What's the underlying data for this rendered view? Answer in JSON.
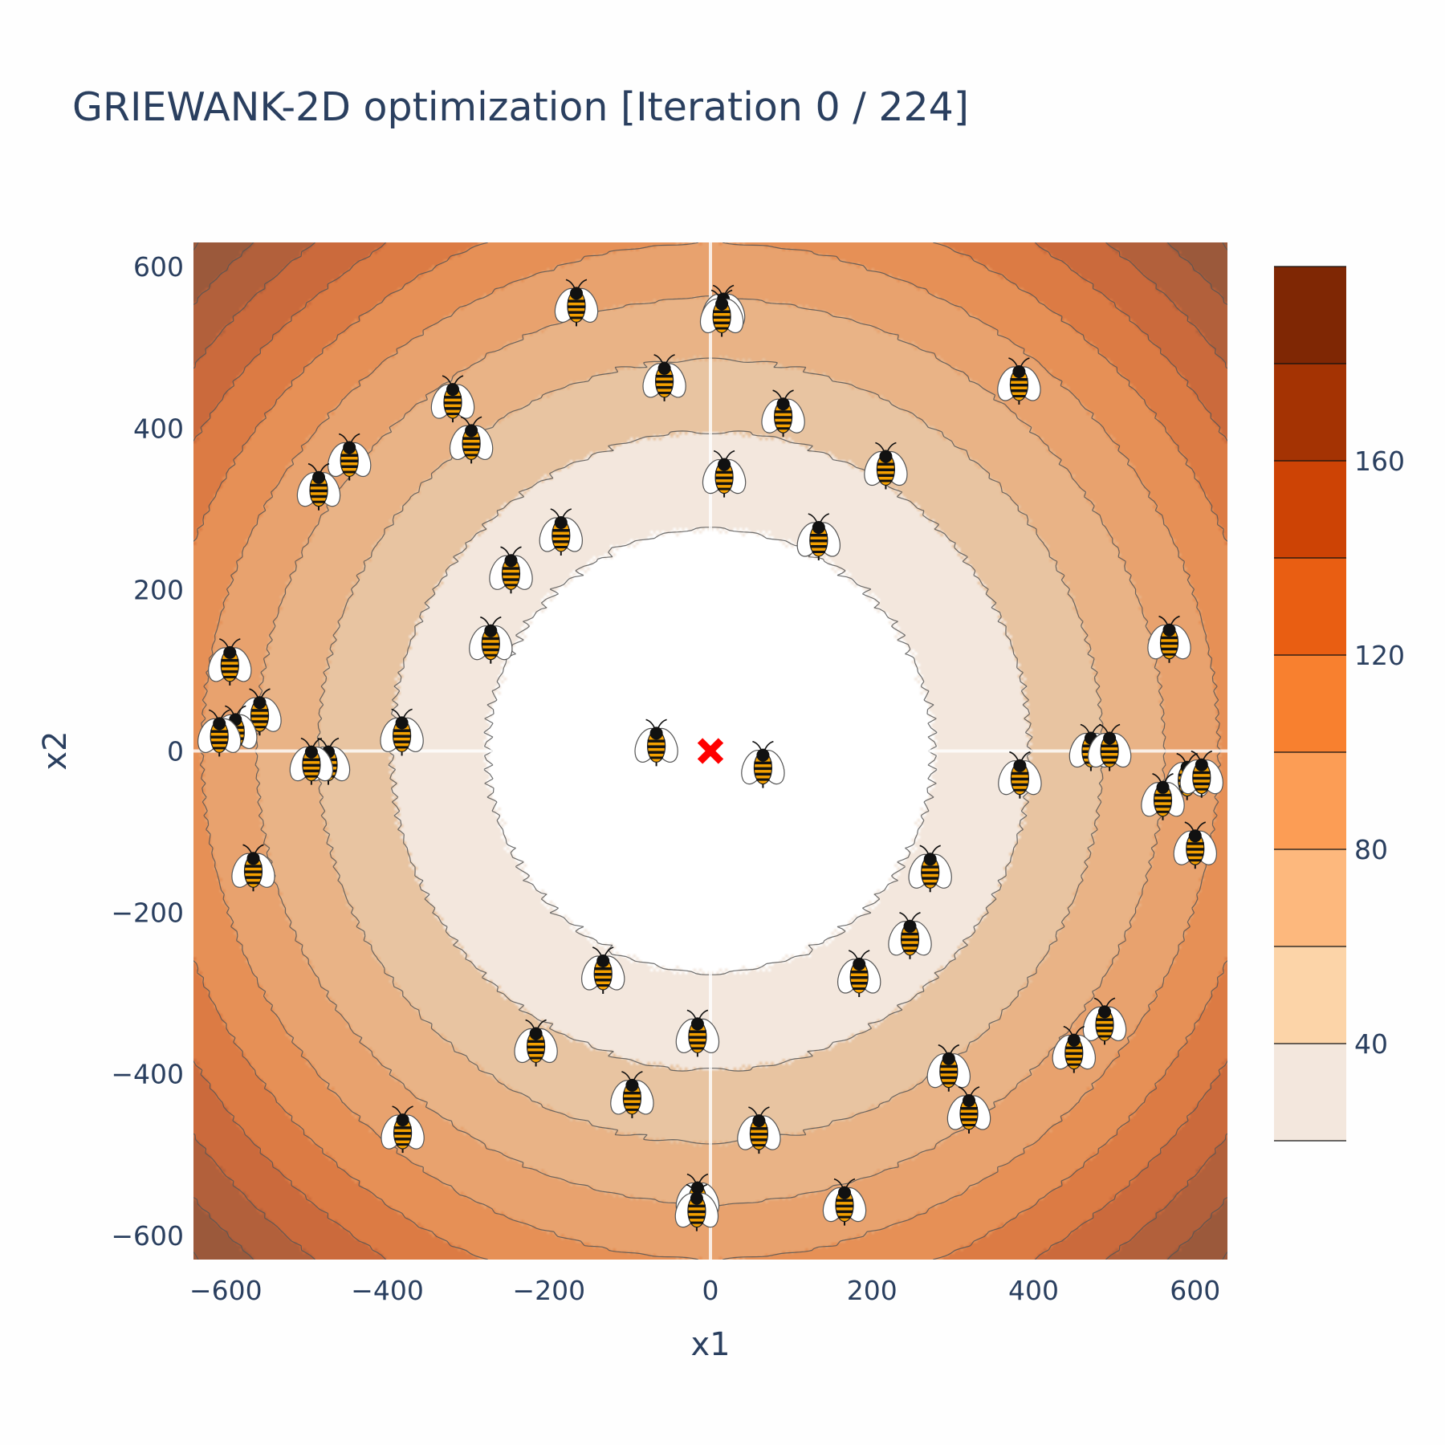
{
  "chart_data": {
    "type": "contour",
    "title": "GRIEWANK-2D optimization [Iteration 0 / 224]",
    "xlabel": "x1",
    "ylabel": "x2",
    "xlim": [
      -640,
      640
    ],
    "ylim": [
      -630,
      630
    ],
    "xticks": [
      -600,
      -400,
      -200,
      0,
      200,
      400,
      600
    ],
    "yticks": [
      -600,
      -400,
      -200,
      0,
      200,
      400,
      600
    ],
    "xtick_labels": [
      "−600",
      "−400",
      "−200",
      "0",
      "200",
      "400",
      "600"
    ],
    "ytick_labels": [
      "−600",
      "−400",
      "−200",
      "0",
      "200",
      "400",
      "600"
    ],
    "contour_levels": [
      20,
      40,
      60,
      80,
      100,
      120,
      140,
      160,
      180,
      200
    ],
    "colorbar": {
      "range": [
        20,
        200
      ],
      "ticks": [
        40,
        80,
        120,
        160
      ],
      "tick_labels": [
        "40",
        "80",
        "120",
        "160"
      ],
      "colors": [
        "#f3e7dd",
        "#fcd4a8",
        "#fdb87d",
        "#fc9d55",
        "#f8802f",
        "#e95e12",
        "#cd4305",
        "#a43303",
        "#7f2704"
      ]
    },
    "grid": true,
    "optimum": {
      "x1": 0,
      "x2": 0,
      "marker": "x",
      "color": "#ff0000"
    },
    "bees": [
      {
        "x1": -166,
        "x2": 555
      },
      {
        "x1": 16,
        "x2": 548
      },
      {
        "x1": 14,
        "x2": 542
      },
      {
        "x1": -57,
        "x2": 462
      },
      {
        "x1": 382,
        "x2": 458
      },
      {
        "x1": -319,
        "x2": 436
      },
      {
        "x1": 90,
        "x2": 418
      },
      {
        "x1": -296,
        "x2": 385
      },
      {
        "x1": -447,
        "x2": 364
      },
      {
        "x1": -485,
        "x2": 327
      },
      {
        "x1": 217,
        "x2": 353
      },
      {
        "x1": 17,
        "x2": 343
      },
      {
        "x1": 134,
        "x2": 265
      },
      {
        "x1": -185,
        "x2": 271
      },
      {
        "x1": -247,
        "x2": 224
      },
      {
        "x1": -272,
        "x2": 137
      },
      {
        "x1": 568,
        "x2": 138
      },
      {
        "x1": -595,
        "x2": 110
      },
      {
        "x1": -558,
        "x2": 48
      },
      {
        "x1": -588,
        "x2": 27
      },
      {
        "x1": -608,
        "x2": 22
      },
      {
        "x1": -382,
        "x2": 23
      },
      {
        "x1": -67,
        "x2": 10
      },
      {
        "x1": 65,
        "x2": -17
      },
      {
        "x1": -473,
        "x2": -13
      },
      {
        "x1": -494,
        "x2": -13
      },
      {
        "x1": 471,
        "x2": 4
      },
      {
        "x1": 494,
        "x2": 4
      },
      {
        "x1": 383,
        "x2": -30
      },
      {
        "x1": 590,
        "x2": -32
      },
      {
        "x1": 608,
        "x2": -29
      },
      {
        "x1": 560,
        "x2": -57
      },
      {
        "x1": 600,
        "x2": -117
      },
      {
        "x1": -566,
        "x2": -145
      },
      {
        "x1": 272,
        "x2": -146
      },
      {
        "x1": 247,
        "x2": -229
      },
      {
        "x1": -133,
        "x2": -272
      },
      {
        "x1": 184,
        "x2": -276
      },
      {
        "x1": 488,
        "x2": -335
      },
      {
        "x1": -216,
        "x2": -362
      },
      {
        "x1": -16,
        "x2": -350
      },
      {
        "x1": 450,
        "x2": -370
      },
      {
        "x1": 295,
        "x2": -393
      },
      {
        "x1": -97,
        "x2": -426
      },
      {
        "x1": 320,
        "x2": -445
      },
      {
        "x1": -381,
        "x2": -469
      },
      {
        "x1": 60,
        "x2": -470
      },
      {
        "x1": -16,
        "x2": -553
      },
      {
        "x1": -17,
        "x2": -566
      },
      {
        "x1": 166,
        "x2": -559
      }
    ]
  }
}
